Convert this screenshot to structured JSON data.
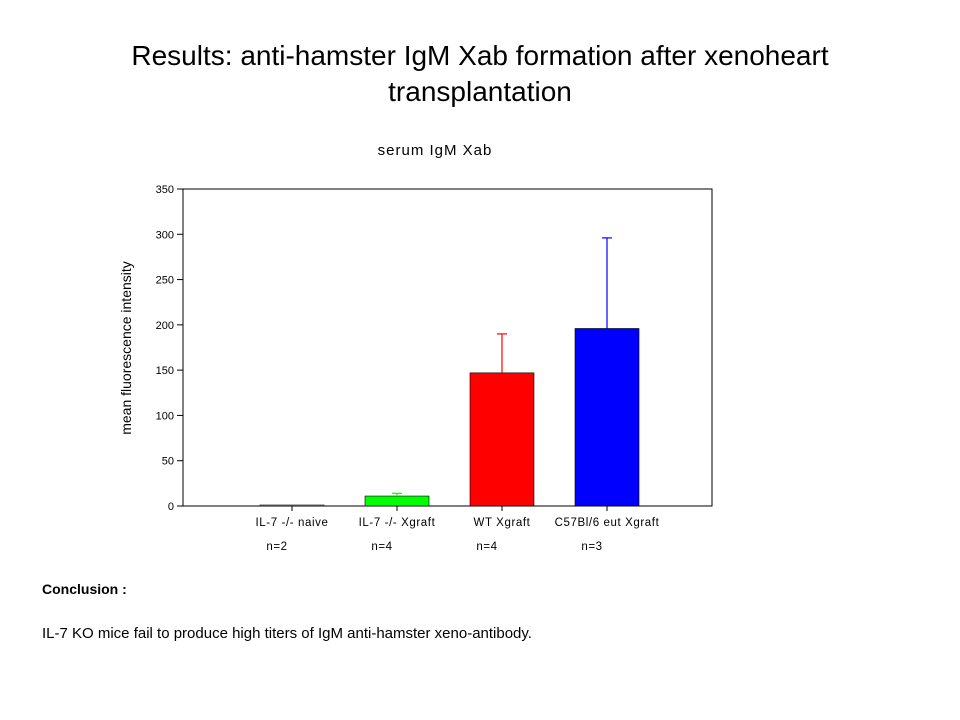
{
  "slide": {
    "title_line1": "Results: anti-hamster IgM Xab formation after xenoheart",
    "title_line2": "transplantation"
  },
  "chart_data": {
    "type": "bar",
    "title": "serum IgM Xab",
    "xlabel": "",
    "ylabel": "mean fluorescence intensity",
    "ylim": [
      0,
      350
    ],
    "yticks": [
      0,
      50,
      100,
      150,
      200,
      250,
      300,
      350
    ],
    "categories": [
      "IL-7 -/- naive",
      "IL-7 -/- Xgraft",
      "WT Xgraft",
      "C57Bl/6 eut Xgraft"
    ],
    "sample_sizes": [
      "n=2",
      "n=4",
      "n=4",
      "n=3"
    ],
    "values": [
      1,
      11,
      147,
      196
    ],
    "error_upper": [
      0,
      3,
      43,
      100
    ],
    "colors": [
      "#00ffff",
      "#00ff00",
      "#ff0000",
      "#0000ff"
    ],
    "grid": false,
    "legend": "none"
  },
  "conclusion": {
    "heading": "Conclusion :",
    "text": "IL-7 KO mice fail to produce high titers of IgM anti-hamster xeno-antibody."
  }
}
